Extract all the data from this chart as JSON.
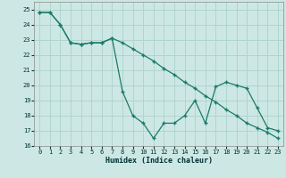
{
  "xlabel": "Humidex (Indice chaleur)",
  "background_color": "#cde8e4",
  "grid_color": "#b0d5cc",
  "line_color": "#1a7a6a",
  "xlim": [
    -0.5,
    23.5
  ],
  "ylim": [
    16,
    25.5
  ],
  "yticks": [
    16,
    17,
    18,
    19,
    20,
    21,
    22,
    23,
    24,
    25
  ],
  "xticks": [
    0,
    1,
    2,
    3,
    4,
    5,
    6,
    7,
    8,
    9,
    10,
    11,
    12,
    13,
    14,
    15,
    16,
    17,
    18,
    19,
    20,
    21,
    22,
    23
  ],
  "line1_x": [
    0,
    1,
    2,
    3,
    4,
    5,
    6,
    7,
    8,
    9,
    10,
    11,
    12,
    13,
    14,
    15,
    16,
    17,
    18,
    19,
    20,
    21,
    22,
    23
  ],
  "line1_y": [
    24.8,
    24.8,
    24.0,
    22.8,
    22.7,
    22.8,
    22.8,
    23.1,
    19.6,
    18.0,
    17.5,
    16.5,
    17.5,
    17.5,
    18.0,
    19.0,
    17.5,
    19.9,
    20.2,
    20.0,
    19.8,
    18.5,
    17.2,
    17.0
  ],
  "line2_x": [
    0,
    1,
    2,
    3,
    4,
    5,
    6,
    7,
    8,
    9,
    10,
    11,
    12,
    13,
    14,
    15,
    16,
    17,
    18,
    19,
    20,
    21,
    22,
    23
  ],
  "line2_y": [
    24.8,
    24.8,
    24.0,
    22.8,
    22.7,
    22.8,
    22.8,
    23.1,
    22.8,
    22.4,
    22.0,
    21.6,
    21.1,
    20.7,
    20.2,
    19.8,
    19.3,
    18.9,
    18.4,
    18.0,
    17.5,
    17.2,
    16.9,
    16.5
  ]
}
